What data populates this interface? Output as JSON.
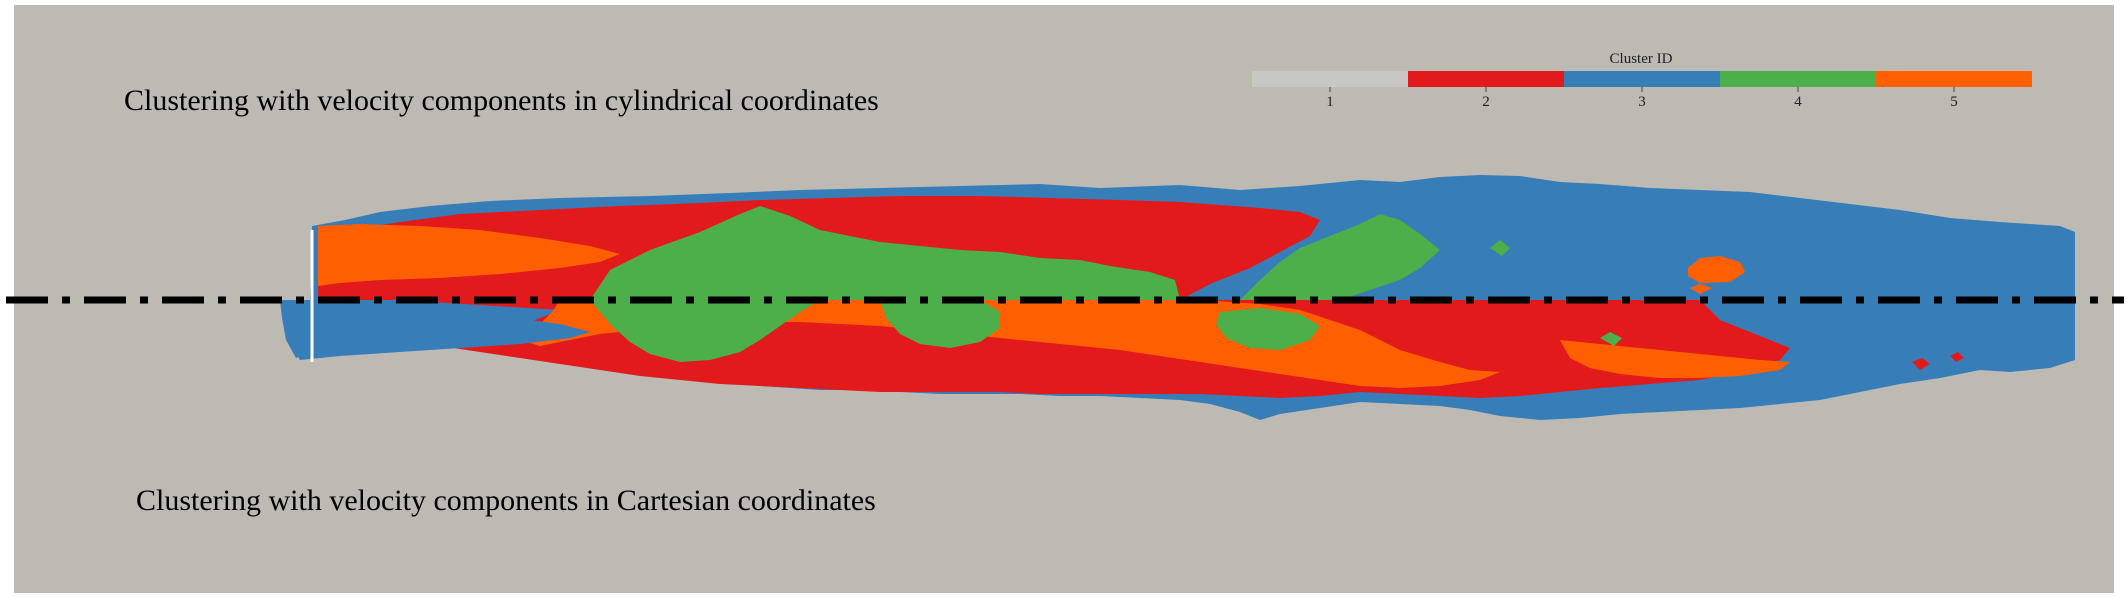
{
  "captions": {
    "top": "Clustering with velocity components in cylindrical coordinates",
    "bottom": "Clustering with velocity components in Cartesian coordinates"
  },
  "colorbar": {
    "title": "Cluster ID",
    "clusters": [
      {
        "id": "1",
        "color": "#bdbab4"
      },
      {
        "id": "2",
        "color": "#e31a1c"
      },
      {
        "id": "3",
        "color": "#377eb8"
      },
      {
        "id": "4",
        "color": "#4daf4a"
      },
      {
        "id": "5",
        "color": "#ff5f00"
      }
    ]
  },
  "axis_line": {
    "style": "dash-dot",
    "color": "#000000"
  }
}
